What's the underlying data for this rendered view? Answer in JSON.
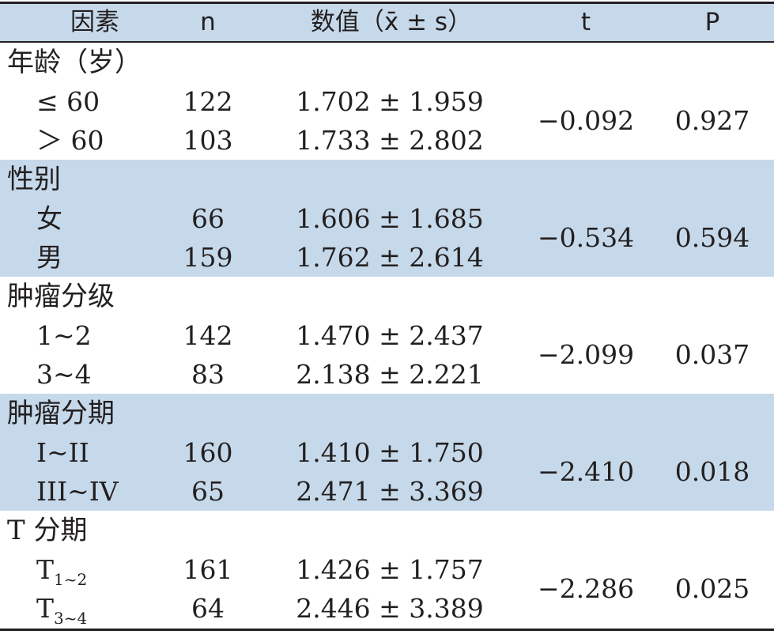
{
  "columns": {
    "factor": "因素",
    "n": "n",
    "value": "数值（x̄ ± s）",
    "t": "t",
    "p": "P"
  },
  "groups": [
    {
      "title": "年龄（岁）",
      "shaded": false,
      "rows": [
        {
          "label": "≤ 60",
          "label_sub": "",
          "n": "122",
          "value": "1.702 ± 1.959"
        },
        {
          "label": "＞ 60",
          "label_sub": "",
          "n": "103",
          "value": "1.733 ± 2.802"
        }
      ],
      "t": "−0.092",
      "p": "0.927"
    },
    {
      "title": "性别",
      "shaded": true,
      "rows": [
        {
          "label": "女",
          "label_sub": "",
          "n": "66",
          "value": "1.606 ± 1.685"
        },
        {
          "label": "男",
          "label_sub": "",
          "n": "159",
          "value": "1.762 ± 2.614"
        }
      ],
      "t": "−0.534",
      "p": "0.594"
    },
    {
      "title": "肿瘤分级",
      "shaded": false,
      "rows": [
        {
          "label": "1~2",
          "label_sub": "",
          "n": "142",
          "value": "1.470 ± 2.437"
        },
        {
          "label": "3~4",
          "label_sub": "",
          "n": "83",
          "value": "2.138 ± 2.221"
        }
      ],
      "t": "−2.099",
      "p": "0.037"
    },
    {
      "title": "肿瘤分期",
      "shaded": true,
      "rows": [
        {
          "label": "I~II",
          "label_sub": "",
          "n": "160",
          "value": "1.410 ± 1.750"
        },
        {
          "label": "III~IV",
          "label_sub": "",
          "n": "65",
          "value": "2.471 ± 3.369"
        }
      ],
      "t": "−2.410",
      "p": "0.018"
    },
    {
      "title": "T 分期",
      "shaded": false,
      "rows": [
        {
          "label": "T",
          "label_sub": "1~2",
          "n": "161",
          "value": "1.426 ± 1.757"
        },
        {
          "label": "T",
          "label_sub": "3~4",
          "n": "64",
          "value": "2.446 ± 3.389"
        }
      ],
      "t": "−2.286",
      "p": "0.025"
    }
  ],
  "colors": {
    "header_bg": "#c6d9ea",
    "shaded_bg": "#c6d9ea",
    "text": "#231f20",
    "rule": "#231f20"
  }
}
